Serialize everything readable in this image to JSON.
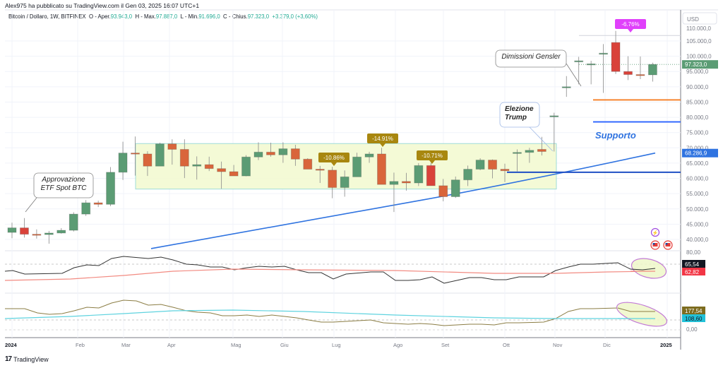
{
  "header": {
    "published": "Alex975 ha pubblicato su TradingView.com il Gen 03, 2025 16:07 UTC+1",
    "symbol": "Bitcoin / Dollaro, 1W, BITFINEX",
    "open_label": "O - Aper.",
    "open": "93.943,0",
    "high_label": "H - Max.",
    "high": "97.887,0",
    "low_label": "L - Min.",
    "low": "91.696,0",
    "close_label": "C - Chius.",
    "close": "97.323,0",
    "change": "+3.379,0 (+3,60%)"
  },
  "price_axis": {
    "currency": "USD",
    "ticks": [
      "105.000,0",
      "100.000,0",
      "95.000,0",
      "90.000,0",
      "85.000,0",
      "80.000,0",
      "75.000,0",
      "70.000,0",
      "65.000,0",
      "60.000,0",
      "55.000,0",
      "50.000,0",
      "45.000,0",
      "40.000,0"
    ],
    "last_price_badge": "97.323,0",
    "ma_badge": "68.286,9"
  },
  "panel1": {
    "tick": "80,00",
    "badge1": "65,54",
    "badge2": "62,82"
  },
  "panel2": {
    "tick": "0,00",
    "badge1": "177,54",
    "badge2": "108,60"
  },
  "time_axis": [
    "2024",
    "Feb",
    "Mar",
    "Apr",
    "Mag",
    "Giu",
    "Lug",
    "Ago",
    "Set",
    "Ott",
    "Nov",
    "Dic",
    "2025"
  ],
  "annotations": {
    "etf": [
      "Approvazione",
      "ETF Spot BTC"
    ],
    "trump": [
      "Elezione",
      "Trump"
    ],
    "gensler": "Dimissioni Gensler",
    "support": "Supporto",
    "drop1": "-10.86%",
    "drop2": "-14.91%",
    "drop3": "-10.71%",
    "drop4": "-6.76%"
  },
  "colors": {
    "up": "#5b9c74",
    "down": "#d9653b",
    "down_red": "#d9423a",
    "ma_blue": "#2f73e0",
    "orange_line": "#f57c22",
    "support_blue": "#2962ff",
    "range_fill": "#f3fad2",
    "range_border": "#9fdcd8",
    "label_gold": "#a8870f",
    "label_magenta": "#e040fb"
  },
  "footer": {
    "brand": "TradingView"
  },
  "chart_data": {
    "type": "candlestick",
    "title": "Bitcoin / Dollaro, 1W, BITFINEX",
    "ylabel": "USD",
    "ylim": [
      37000,
      110000
    ],
    "x": [
      "2024-01-01",
      "2024-01-08",
      "2024-01-15",
      "2024-01-22",
      "2024-01-29",
      "2024-02-05",
      "2024-02-12",
      "2024-02-19",
      "2024-02-26",
      "2024-03-04",
      "2024-03-11",
      "2024-03-18",
      "2024-03-25",
      "2024-04-01",
      "2024-04-08",
      "2024-04-15",
      "2024-04-22",
      "2024-04-29",
      "2024-05-06",
      "2024-05-13",
      "2024-05-20",
      "2024-05-27",
      "2024-06-03",
      "2024-06-10",
      "2024-06-17",
      "2024-06-24",
      "2024-07-01",
      "2024-07-08",
      "2024-07-15",
      "2024-07-22",
      "2024-07-29",
      "2024-08-05",
      "2024-08-12",
      "2024-08-19",
      "2024-08-26",
      "2024-09-02",
      "2024-09-09",
      "2024-09-16",
      "2024-09-23",
      "2024-09-30",
      "2024-10-07",
      "2024-10-14",
      "2024-10-21",
      "2024-10-28",
      "2024-11-04",
      "2024-11-11",
      "2024-11-18",
      "2024-11-25",
      "2024-12-02",
      "2024-12-09",
      "2024-12-16",
      "2024-12-23",
      "2024-12-30"
    ],
    "series": [
      {
        "name": "open",
        "values": [
          42300,
          43800,
          41700,
          41600,
          42100,
          43000,
          48300,
          52000,
          51500,
          62000,
          68300,
          68000,
          64000,
          71300,
          69500,
          64000,
          64500,
          63200,
          62200,
          60800,
          67000,
          68600,
          67700,
          69700,
          66300,
          63000,
          62700,
          57000,
          60500,
          67000,
          68000,
          58000,
          59000,
          58500,
          64200,
          57600,
          54000,
          59500,
          63000,
          66000,
          63000,
          68500,
          68500,
          69500,
          80500,
          90000,
          98500,
          97500,
          101000,
          104500,
          95000,
          94000,
          93900
        ]
      },
      {
        "name": "high",
        "values": [
          45500,
          47000,
          43300,
          42800,
          43700,
          48900,
          52900,
          52700,
          63700,
          72000,
          73700,
          68900,
          71700,
          72800,
          72800,
          67200,
          67100,
          65500,
          64400,
          67600,
          71800,
          71700,
          71800,
          71000,
          66600,
          64100,
          63800,
          62600,
          68400,
          68700,
          70000,
          61900,
          61800,
          65000,
          65100,
          59800,
          60600,
          64200,
          66600,
          66200,
          64800,
          69500,
          70000,
          73600,
          81500,
          93500,
          99800,
          98500,
          104000,
          108300,
          100000,
          99900,
          97900
        ]
      },
      {
        "name": "low",
        "values": [
          40400,
          40600,
          40300,
          38600,
          41900,
          42600,
          47700,
          50600,
          50900,
          59500,
          60900,
          60800,
          64500,
          64500,
          60100,
          59600,
          62400,
          56600,
          60900,
          60700,
          66000,
          67100,
          65100,
          64100,
          64500,
          58500,
          53500,
          54000,
          60600,
          65100,
          64500,
          49000,
          56000,
          57500,
          58400,
          52500,
          53600,
          57500,
          62700,
          60000,
          58800,
          62300,
          65100,
          67500,
          68800,
          86700,
          90800,
          90800,
          88000,
          94200,
          92200,
          92500,
          91700
        ]
      },
      {
        "name": "close",
        "values": [
          43800,
          41700,
          41600,
          42100,
          43000,
          48300,
          52000,
          51500,
          62000,
          68300,
          68000,
          64000,
          71300,
          69500,
          64000,
          64500,
          63200,
          62200,
          60800,
          67000,
          68600,
          67700,
          69700,
          66300,
          63000,
          62700,
          57000,
          60500,
          67000,
          68000,
          58000,
          59000,
          58500,
          64200,
          57600,
          54000,
          59500,
          63000,
          66000,
          63000,
          62500,
          68500,
          69200,
          68800,
          80500,
          90000,
          98500,
          97500,
          101000,
          95000,
          94000,
          93900,
          97323
        ]
      }
    ],
    "overlays": [
      {
        "name": "moving average (blue)",
        "last": 68286.9
      },
      {
        "name": "orange horizontal",
        "value": 85700
      },
      {
        "name": "Supporto (blue horizontal)",
        "value": 78500
      },
      {
        "name": "dark blue horizontal",
        "value": 62000
      },
      {
        "name": "consolidation range box",
        "from": "2024-03-04",
        "to": "2024-10-28",
        "low": 56500,
        "high": 71400
      }
    ],
    "annotations": [
      "Approvazione ETF Spot BTC",
      "Elezione Trump",
      "Dimissioni Gensler",
      "Supporto",
      "-10.86%",
      "-14.91%",
      "-10.71%",
      "-6.76%"
    ],
    "subpanels": [
      {
        "name": "oscillator 1",
        "lines": [
          {
            "name": "black",
            "last": 65.54
          },
          {
            "name": "red",
            "last": 62.82
          }
        ],
        "tick": "80,00"
      },
      {
        "name": "oscillator 2",
        "lines": [
          {
            "name": "olive",
            "last": 177.54
          },
          {
            "name": "cyan",
            "last": 108.6
          }
        ],
        "tick": "0,00"
      }
    ],
    "xlabel": "",
    "xticks": [
      "2024",
      "Feb",
      "Mar",
      "Apr",
      "Mag",
      "Giu",
      "Lug",
      "Ago",
      "Set",
      "Ott",
      "Nov",
      "Dic",
      "2025"
    ]
  }
}
